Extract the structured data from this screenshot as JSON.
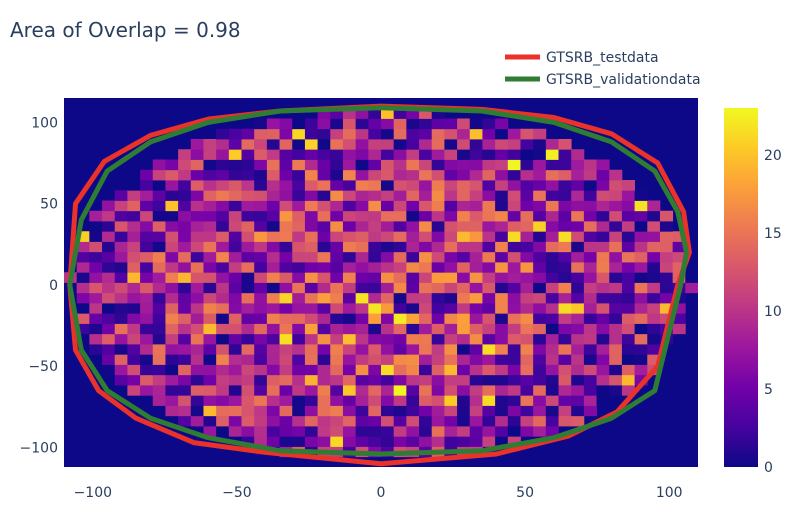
{
  "chart_data": {
    "type": "heatmap",
    "title": "Area of Overlap = 0.98",
    "xlabel": "",
    "ylabel": "",
    "xlim": [
      -110,
      110
    ],
    "ylim": [
      -112,
      115
    ],
    "x_ticks": [
      -100,
      -50,
      0,
      50,
      100
    ],
    "y_ticks": [
      -100,
      -50,
      0,
      50,
      100
    ],
    "x_tick_labels": [
      "−100",
      "−50",
      "0",
      "50",
      "100"
    ],
    "y_tick_labels": [
      "−100",
      "−50",
      "0",
      "50",
      "100"
    ],
    "heatmap": {
      "x_range": [
        -110,
        110
      ],
      "y_range": [
        -112,
        115
      ],
      "nx": 50,
      "ny": 36,
      "zmin": 0,
      "zmax": 23,
      "colorscale": "plasma",
      "support_ellipse": {
        "cx": 0,
        "cy": 0,
        "rx": 108,
        "ry": 108
      },
      "peak_value": 23
    },
    "colorbar": {
      "min": 0,
      "max": 23,
      "ticks": [
        0,
        5,
        10,
        15,
        20
      ],
      "tick_labels": [
        "0",
        "5",
        "10",
        "15",
        "20"
      ]
    },
    "legend": {
      "placement": "top-right"
    },
    "series": [
      {
        "name": "GTSRB_testdata",
        "color": "#e8322a",
        "x": [
          103,
          107,
          105,
          96,
          80,
          60,
          35,
          0,
          -35,
          -60,
          -80,
          -96,
          -106,
          -108,
          -106,
          -98,
          -85,
          -65,
          -40,
          0,
          40,
          65,
          82,
          96,
          103
        ],
        "y": [
          0,
          20,
          45,
          75,
          93,
          103,
          108,
          110,
          107,
          102,
          92,
          76,
          50,
          0,
          -40,
          -65,
          -82,
          -97,
          -103,
          -110,
          -104,
          -93,
          -78,
          -50,
          0
        ]
      },
      {
        "name": "GTSRB_validationdata",
        "color": "#2e7d32",
        "x": [
          104,
          106,
          103,
          95,
          80,
          60,
          35,
          0,
          -35,
          -60,
          -80,
          -95,
          -104,
          -108,
          -104,
          -95,
          -80,
          -60,
          -35,
          0,
          35,
          60,
          80,
          95,
          104
        ],
        "y": [
          0,
          20,
          45,
          70,
          88,
          100,
          107,
          109,
          107,
          100,
          88,
          70,
          40,
          0,
          -40,
          -65,
          -82,
          -94,
          -102,
          -104,
          -102,
          -94,
          -82,
          -65,
          0
        ]
      }
    ]
  }
}
